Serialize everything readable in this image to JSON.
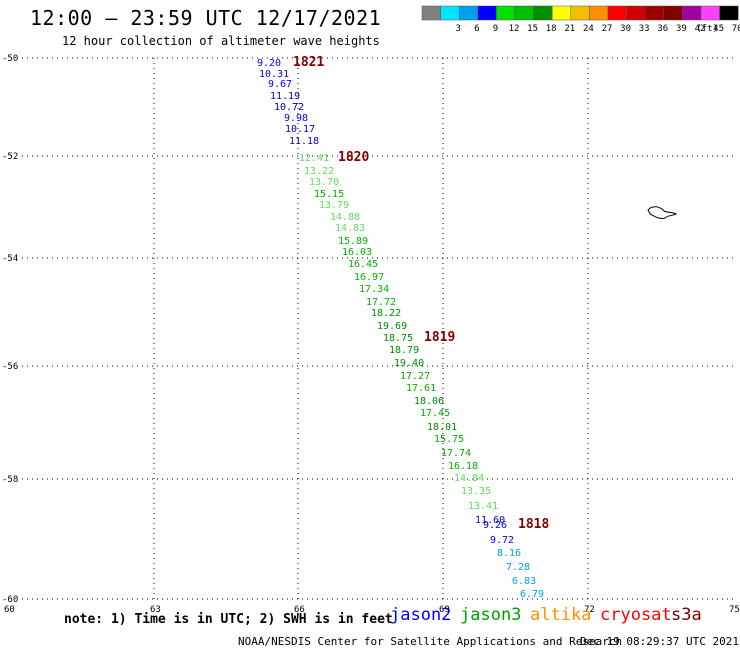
{
  "header": {
    "title": "12:00 – 23:59 UTC 12/17/2021",
    "subtitle": "12 hour collection of altimeter wave heights"
  },
  "legend": {
    "bins": [
      {
        "label": "",
        "color": "#808080"
      },
      {
        "label": "3",
        "color": "#00e4ff"
      },
      {
        "label": "6",
        "color": "#00a0f0"
      },
      {
        "label": "9",
        "color": "#0000ff"
      },
      {
        "label": "12",
        "color": "#00e000"
      },
      {
        "label": "15",
        "color": "#00c000"
      },
      {
        "label": "18",
        "color": "#009000"
      },
      {
        "label": "21",
        "color": "#ffff00"
      },
      {
        "label": "24",
        "color": "#f0c000"
      },
      {
        "label": "27",
        "color": "#ff9000"
      },
      {
        "label": "30",
        "color": "#ff0000"
      },
      {
        "label": "33",
        "color": "#d00000"
      },
      {
        "label": "36",
        "color": "#a00000"
      },
      {
        "label": "39",
        "color": "#800000"
      },
      {
        "label": "42",
        "color": "#a000a0"
      },
      {
        "label": "45",
        "color": "#ff40ff"
      },
      {
        "label": "70",
        "color": "#000000"
      }
    ],
    "unit": "(ft)"
  },
  "map": {
    "lat_labels": [
      "-50",
      "-52",
      "-54",
      "-56",
      "-58",
      "-60"
    ],
    "lon_labels": [
      "60",
      "63",
      "66",
      "69",
      "72",
      "75"
    ]
  },
  "track": {
    "points": [
      {
        "label": "9.20",
        "color": "#0000ff"
      },
      {
        "label": "10.31",
        "color": "#0000c8"
      },
      {
        "label": "9.67",
        "color": "#0000ff"
      },
      {
        "label": "11.19",
        "color": "#0000c8"
      },
      {
        "label": "10.72",
        "color": "#0000c8"
      },
      {
        "label": "9.98",
        "color": "#0000ff"
      },
      {
        "label": "10.17",
        "color": "#0000c8"
      },
      {
        "label": "11.18",
        "color": "#0000c8"
      },
      {
        "label": "12.41",
        "color": "#5de05d"
      },
      {
        "label": "13.22",
        "color": "#5de05d"
      },
      {
        "label": "13.70",
        "color": "#5de05d"
      },
      {
        "label": "15.15",
        "color": "#00b000"
      },
      {
        "label": "13.79",
        "color": "#5de05d"
      },
      {
        "label": "14.88",
        "color": "#5de05d"
      },
      {
        "label": "14.83",
        "color": "#5de05d"
      },
      {
        "label": "15.89",
        "color": "#00b000"
      },
      {
        "label": "16.03",
        "color": "#00b000"
      },
      {
        "label": "16.45",
        "color": "#00b000"
      },
      {
        "label": "16.97",
        "color": "#00b000"
      },
      {
        "label": "17.34",
        "color": "#00b000"
      },
      {
        "label": "17.72",
        "color": "#00b000"
      },
      {
        "label": "18.22",
        "color": "#008c00"
      },
      {
        "label": "19.69",
        "color": "#008c00"
      },
      {
        "label": "18.75",
        "color": "#008c00"
      },
      {
        "label": "18.79",
        "color": "#008c00"
      },
      {
        "label": "19.40",
        "color": "#008c00"
      },
      {
        "label": "17.27",
        "color": "#00b000"
      },
      {
        "label": "17.61",
        "color": "#00b000"
      },
      {
        "label": "18.06",
        "color": "#008c00"
      },
      {
        "label": "17.45",
        "color": "#00b000"
      },
      {
        "label": "18.01",
        "color": "#008c00"
      },
      {
        "label": "15.75",
        "color": "#00b000"
      },
      {
        "label": "17.74",
        "color": "#00b000"
      },
      {
        "label": "16.18",
        "color": "#00b000"
      },
      {
        "label": "14.84",
        "color": "#5de05d"
      },
      {
        "label": "13.35",
        "color": "#5de05d"
      },
      {
        "label": "13.41",
        "color": "#5de05d"
      },
      {
        "label": "11.60",
        "color": "#0000c8"
      },
      {
        "label": "9.26",
        "color": "#0000ff"
      },
      {
        "label": "9.72",
        "color": "#0000ff"
      },
      {
        "label": "8.16",
        "color": "#00a0f0"
      },
      {
        "label": "7.28",
        "color": "#00a0f0"
      },
      {
        "label": "6.83",
        "color": "#00a0f0"
      },
      {
        "label": "6.79",
        "color": "#00a0f0"
      }
    ],
    "time_markers": [
      {
        "label": "1821",
        "color": "#800000"
      },
      {
        "label": "1820",
        "color": "#800000"
      },
      {
        "label": "1819",
        "color": "#800000"
      },
      {
        "label": "1818",
        "color": "#800000"
      }
    ]
  },
  "footer": {
    "note": "note: 1) Time is in UTC; 2) SWH is in feet",
    "satellites": [
      {
        "name": "jason2",
        "color": "#0000ff"
      },
      {
        "name": "jason3",
        "color": "#00a000"
      },
      {
        "name": "altika",
        "color": "#ff9000"
      },
      {
        "name": "cryosat",
        "color": "#ff0000"
      },
      {
        "name": "s3a",
        "color": "#800000"
      }
    ],
    "credit": "NOAA/NESDIS Center for Satellite Applications and Research",
    "timestamp": "Dec 19 08:29:37 UTC 2021"
  }
}
